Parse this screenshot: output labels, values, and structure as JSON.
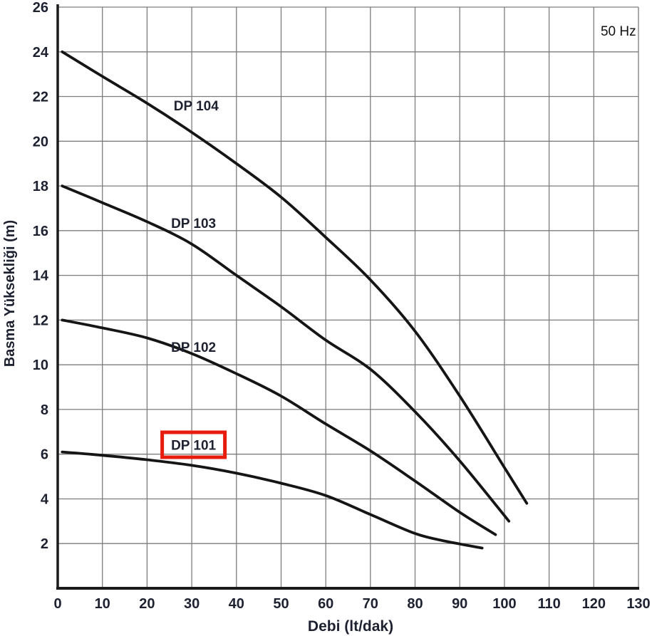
{
  "chart_data": {
    "type": "line",
    "title": "",
    "frequency_label": "50 Hz",
    "xlabel": "Debi (lt/dak)",
    "ylabel": "Basma Yüksekliği (m)",
    "xlim": [
      0,
      130
    ],
    "ylim": [
      0,
      26
    ],
    "x_ticks": [
      0,
      10,
      20,
      30,
      40,
      50,
      60,
      70,
      80,
      90,
      100,
      110,
      120,
      130
    ],
    "y_ticks": [
      2,
      4,
      6,
      8,
      10,
      12,
      14,
      16,
      18,
      20,
      22,
      24,
      26
    ],
    "grid": "on",
    "legend_position": "inline-labels",
    "series": [
      {
        "name": "DP 104",
        "highlighted": false,
        "label_anchor": [
          31,
          21.6
        ],
        "points": [
          [
            1,
            24.0
          ],
          [
            10,
            22.9
          ],
          [
            20,
            21.7
          ],
          [
            30,
            20.4
          ],
          [
            40,
            19.0
          ],
          [
            50,
            17.5
          ],
          [
            60,
            15.7
          ],
          [
            70,
            13.8
          ],
          [
            80,
            11.5
          ],
          [
            90,
            8.6
          ],
          [
            100,
            5.4
          ],
          [
            105,
            3.8
          ]
        ]
      },
      {
        "name": "DP 103",
        "highlighted": false,
        "label_anchor": [
          30.4,
          16.35
        ],
        "points": [
          [
            1,
            18.0
          ],
          [
            10,
            17.25
          ],
          [
            20,
            16.4
          ],
          [
            30,
            15.4
          ],
          [
            40,
            14.0
          ],
          [
            50,
            12.6
          ],
          [
            60,
            11.1
          ],
          [
            70,
            9.8
          ],
          [
            80,
            7.9
          ],
          [
            90,
            5.7
          ],
          [
            101,
            3.0
          ]
        ]
      },
      {
        "name": "DP 102",
        "highlighted": false,
        "label_anchor": [
          30.4,
          10.8
        ],
        "points": [
          [
            1,
            12.0
          ],
          [
            10,
            11.65
          ],
          [
            20,
            11.2
          ],
          [
            30,
            10.5
          ],
          [
            40,
            9.6
          ],
          [
            50,
            8.6
          ],
          [
            60,
            7.35
          ],
          [
            70,
            6.15
          ],
          [
            80,
            4.8
          ],
          [
            90,
            3.4
          ],
          [
            98,
            2.4
          ]
        ]
      },
      {
        "name": "DP 101",
        "highlighted": true,
        "label_anchor": [
          30.4,
          6.42
        ],
        "points": [
          [
            1,
            6.1
          ],
          [
            10,
            5.95
          ],
          [
            20,
            5.75
          ],
          [
            30,
            5.5
          ],
          [
            40,
            5.15
          ],
          [
            50,
            4.7
          ],
          [
            60,
            4.15
          ],
          [
            70,
            3.3
          ],
          [
            80,
            2.45
          ],
          [
            87,
            2.1
          ],
          [
            95,
            1.8
          ]
        ]
      }
    ],
    "frequency_label_anchor": [
      125.5,
      24.95
    ],
    "colors": {
      "curve": "#151515",
      "grid": "#7d7d7d",
      "axis": "#1a1a1a",
      "text": "#1d2130",
      "frequency_text": "#111111",
      "highlight_box": "#e81c0d",
      "background": "#ffffff"
    }
  }
}
